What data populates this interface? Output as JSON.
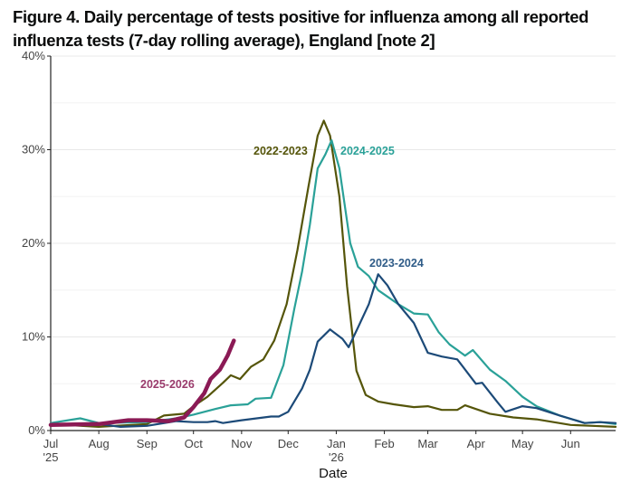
{
  "chart_data": {
    "type": "line",
    "title": "Figure 4. Daily percentage of tests positive for influenza among all reported influenza tests (7-day rolling average), England [note 2]",
    "xlabel": "Date",
    "ylabel": "",
    "xlim": [
      "2025-07-01",
      "2026-06-30"
    ],
    "ylim": [
      0,
      40
    ],
    "y_ticks": [
      0,
      10,
      20,
      30,
      40
    ],
    "y_tick_labels": [
      "0%",
      "10%",
      "20%",
      "30%",
      "40%"
    ],
    "x_ticks": [
      {
        "date": "2025-07-01",
        "label": "Jul",
        "sub": "'25"
      },
      {
        "date": "2025-08-01",
        "label": "Aug",
        "sub": ""
      },
      {
        "date": "2025-09-01",
        "label": "Sep",
        "sub": ""
      },
      {
        "date": "2025-10-01",
        "label": "Oct",
        "sub": ""
      },
      {
        "date": "2025-11-01",
        "label": "Nov",
        "sub": ""
      },
      {
        "date": "2025-12-01",
        "label": "Dec",
        "sub": ""
      },
      {
        "date": "2026-01-01",
        "label": "Jan",
        "sub": "'26"
      },
      {
        "date": "2026-02-01",
        "label": "Feb",
        "sub": ""
      },
      {
        "date": "2026-03-01",
        "label": "Mar",
        "sub": ""
      },
      {
        "date": "2026-04-01",
        "label": "Apr",
        "sub": ""
      },
      {
        "date": "2026-05-01",
        "label": "May",
        "sub": ""
      },
      {
        "date": "2026-06-01",
        "label": "Jun",
        "sub": ""
      }
    ],
    "grid": true,
    "legend": "direct labels",
    "series": [
      {
        "name": "2022-2023",
        "color": "#55550a",
        "x": [
          "2025-07-01",
          "2025-08-01",
          "2025-09-01",
          "2025-09-12",
          "2025-09-25",
          "2025-10-01",
          "2025-10-10",
          "2025-10-20",
          "2025-10-25",
          "2025-10-31",
          "2025-11-07",
          "2025-11-15",
          "2025-11-22",
          "2025-11-30",
          "2025-12-07",
          "2025-12-14",
          "2025-12-20",
          "2025-12-24",
          "2025-12-28",
          "2026-01-03",
          "2026-01-08",
          "2026-01-14",
          "2026-01-20",
          "2026-01-28",
          "2026-02-07",
          "2026-02-20",
          "2026-03-01",
          "2026-03-10",
          "2026-03-20",
          "2026-03-25",
          "2026-04-01",
          "2026-04-10",
          "2026-04-25",
          "2026-05-10",
          "2026-06-01",
          "2026-06-15",
          "2026-06-30"
        ],
        "y": [
          0.7,
          0.4,
          0.7,
          1.6,
          1.8,
          2.6,
          3.6,
          5.1,
          5.9,
          5.5,
          6.8,
          7.6,
          9.6,
          13.5,
          19.3,
          26,
          31.5,
          33.1,
          31.5,
          25,
          15.4,
          6.4,
          3.8,
          3.1,
          2.8,
          2.5,
          2.6,
          2.2,
          2.2,
          2.7,
          2.3,
          1.8,
          1.4,
          1.2,
          0.6,
          0.5,
          0.4
        ]
      },
      {
        "name": "2024-2025",
        "color": "#2aa198",
        "x": [
          "2025-07-01",
          "2025-07-20",
          "2025-08-01",
          "2025-09-01",
          "2025-09-20",
          "2025-10-01",
          "2025-10-15",
          "2025-10-25",
          "2025-11-05",
          "2025-11-10",
          "2025-11-20",
          "2025-11-28",
          "2025-12-05",
          "2025-12-10",
          "2025-12-15",
          "2025-12-20",
          "2025-12-25",
          "2025-12-29",
          "2026-01-03",
          "2026-01-10",
          "2026-01-15",
          "2026-01-22",
          "2026-01-28",
          "2026-02-10",
          "2026-02-20",
          "2026-03-01",
          "2026-03-08",
          "2026-03-15",
          "2026-03-25",
          "2026-03-30",
          "2026-04-10",
          "2026-04-20",
          "2026-05-01",
          "2026-05-10",
          "2026-05-25",
          "2026-06-10",
          "2026-06-20",
          "2026-06-30"
        ],
        "y": [
          0.8,
          1.3,
          0.8,
          0.9,
          1.3,
          1.7,
          2.3,
          2.7,
          2.8,
          3.4,
          3.5,
          7,
          13,
          17,
          22,
          28,
          29.5,
          31,
          28,
          20,
          17.5,
          16.5,
          15,
          13.5,
          12.5,
          12.4,
          10.5,
          9.2,
          8,
          8.6,
          6.5,
          5.3,
          3.6,
          2.6,
          1.6,
          0.8,
          0.9,
          0.7
        ]
      },
      {
        "name": "2023-2024",
        "color": "#1c4a78",
        "x": [
          "2025-07-01",
          "2025-08-01",
          "2025-08-15",
          "2025-09-01",
          "2025-09-20",
          "2025-10-01",
          "2025-10-10",
          "2025-10-15",
          "2025-10-20",
          "2025-11-01",
          "2025-11-20",
          "2025-11-25",
          "2025-12-01",
          "2025-12-10",
          "2025-12-15",
          "2025-12-20",
          "2025-12-28",
          "2026-01-05",
          "2026-01-09",
          "2026-01-15",
          "2026-01-22",
          "2026-01-28",
          "2026-02-03",
          "2026-02-10",
          "2026-02-20",
          "2026-03-01",
          "2026-03-10",
          "2026-03-20",
          "2026-04-01",
          "2026-04-05",
          "2026-04-15",
          "2026-04-20",
          "2026-05-01",
          "2026-05-10",
          "2026-05-25",
          "2026-06-10",
          "2026-06-20",
          "2026-06-30"
        ],
        "y": [
          0.7,
          0.7,
          0.4,
          0.5,
          1.0,
          0.9,
          0.9,
          1.0,
          0.8,
          1.1,
          1.5,
          1.5,
          2.0,
          4.5,
          6.5,
          9.5,
          10.8,
          9.8,
          8.9,
          11,
          13.5,
          16.7,
          15.5,
          13.5,
          11.5,
          8.3,
          7.9,
          7.6,
          5,
          5.1,
          3,
          2,
          2.6,
          2.4,
          1.6,
          0.8,
          0.9,
          0.8
        ]
      },
      {
        "name": "2025-2026",
        "color": "#8b1a55",
        "x": [
          "2025-07-01",
          "2025-08-01",
          "2025-08-20",
          "2025-09-01",
          "2025-09-15",
          "2025-09-25",
          "2025-10-01",
          "2025-10-08",
          "2025-10-12",
          "2025-10-18",
          "2025-10-23",
          "2025-10-27"
        ],
        "y": [
          0.6,
          0.7,
          1.1,
          1.1,
          1.0,
          1.4,
          2.5,
          4.0,
          5.5,
          6.5,
          8,
          9.6
        ]
      }
    ]
  }
}
